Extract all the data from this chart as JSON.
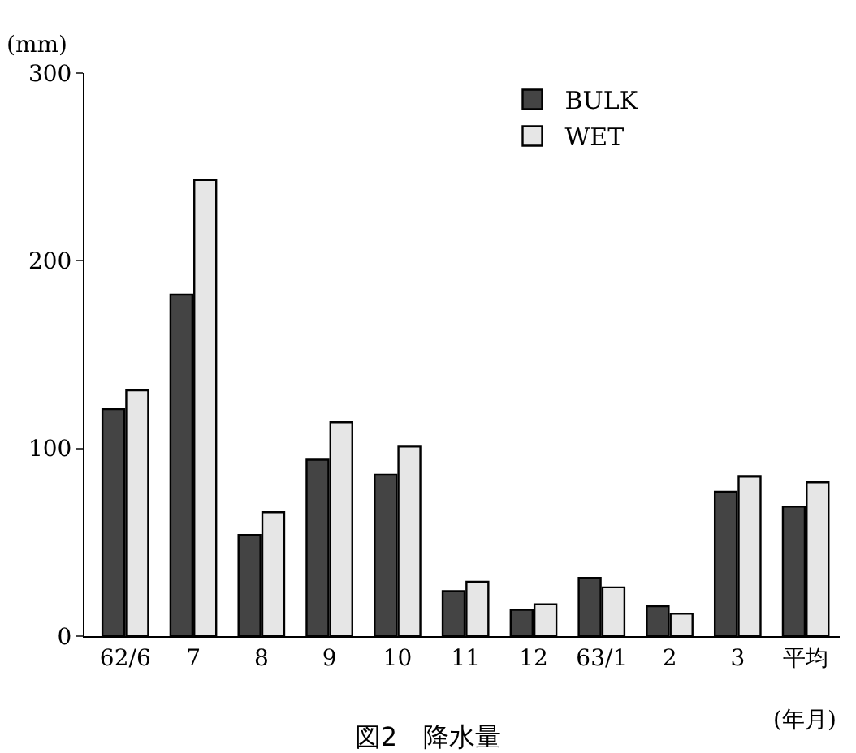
{
  "chart_data": {
    "type": "bar",
    "title": "図2　降水量",
    "ylabel": "(mm)",
    "xlabel": "(年月)",
    "categories": [
      "62/6",
      "7",
      "8",
      "9",
      "10",
      "11",
      "12",
      "63/1",
      "2",
      "3",
      "平均"
    ],
    "series": [
      {
        "name": "BULK",
        "color": "#444444",
        "values": [
          121,
          182,
          54,
          94,
          86,
          24,
          14,
          31,
          16,
          77,
          69
        ]
      },
      {
        "name": "WET",
        "color": "#e6e6e6",
        "values": [
          131,
          243,
          66,
          114,
          101,
          29,
          17,
          26,
          12,
          85,
          82
        ]
      }
    ],
    "ylim": [
      0,
      300
    ],
    "yticks": [
      0,
      100,
      200,
      300
    ],
    "grid": false,
    "legend": "top right"
  }
}
